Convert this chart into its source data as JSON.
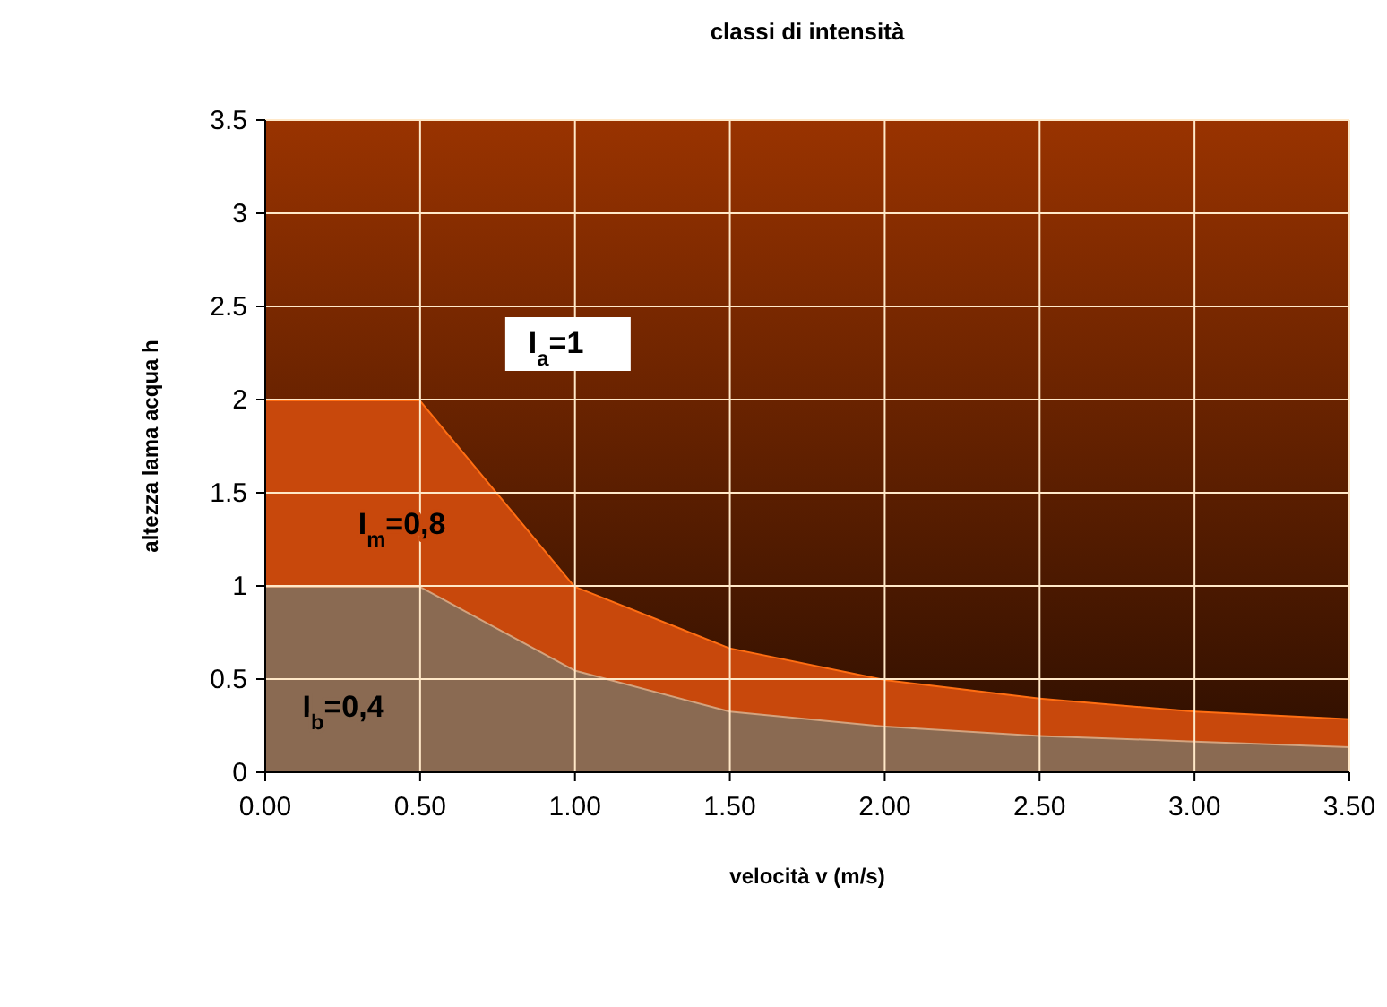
{
  "chart_data": {
    "type": "area",
    "stacked": true,
    "title": "classi di intensità",
    "xlabel": "velocità v (m/s)",
    "ylabel": "altezza lama acqua h",
    "x": [
      0,
      0.5,
      1,
      1.5,
      2,
      2.5,
      3,
      3.5
    ],
    "series": [
      {
        "name": "I$_{b}$=0,4",
        "color": "#8a6a52",
        "values": [
          1,
          1,
          0.55,
          0.33,
          0.25,
          0.2,
          0.17,
          0.14
        ]
      },
      {
        "name": "I$_{m}$=0,8",
        "color": "#c8480c",
        "values": [
          1,
          1,
          0.45,
          0.34,
          0.25,
          0.2,
          0.16,
          0.15
        ]
      },
      {
        "name": "I$_{a}$=1",
        "color": "#993300",
        "values": [
          1.5,
          1.5,
          2.5,
          2.83,
          3,
          3.1,
          3.17,
          3.21
        ]
      }
    ],
    "xlim": [
      0,
      3.5
    ],
    "ylim": [
      0,
      3.5
    ],
    "xticks": [
      {
        "value": 0,
        "label": "0.00"
      },
      {
        "value": 0.5,
        "label": "0.50"
      },
      {
        "value": 1,
        "label": "1.00"
      },
      {
        "value": 1.5,
        "label": "1.50"
      },
      {
        "value": 2,
        "label": "2.00"
      },
      {
        "value": 2.5,
        "label": "2.50"
      },
      {
        "value": 3,
        "label": "3.00"
      },
      {
        "value": 3.5,
        "label": "3.50"
      }
    ],
    "yticks": [
      0,
      0.5,
      1,
      1.5,
      2,
      2.5,
      3,
      3.5
    ],
    "grid": true
  }
}
